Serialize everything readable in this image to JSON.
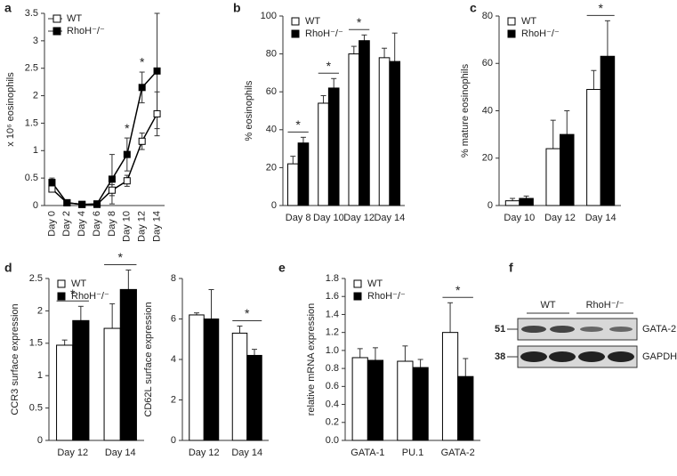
{
  "chart_data": [
    {
      "type": "line",
      "panel_label": "a",
      "ylabel": "x 10⁶ eosinophils",
      "categories": [
        "Day 0",
        "Day 2",
        "Day 4",
        "Day 6",
        "Day 8",
        "Day 10",
        "Day 12",
        "Day 14"
      ],
      "xtick_rotation": -90,
      "series": [
        {
          "name": "WT",
          "color": "#ffffff",
          "values": [
            0.3,
            0.05,
            0.02,
            0.02,
            0.28,
            0.45,
            1.17,
            1.67
          ],
          "errors": [
            0.05,
            0.02,
            0.01,
            0.01,
            0.1,
            0.1,
            0.15,
            0.4
          ]
        },
        {
          "name": "RhoH⁻/⁻",
          "color": "#000000",
          "values": [
            0.42,
            0.05,
            0.02,
            0.03,
            0.48,
            0.93,
            2.15,
            2.45
          ],
          "errors": [
            0.08,
            0.02,
            0.01,
            0.02,
            0.45,
            0.3,
            0.28,
            1.05
          ]
        }
      ],
      "ylim": [
        0,
        3.5
      ],
      "yticks": [
        0,
        0.5,
        1,
        1.5,
        2,
        2.5,
        3,
        3.5
      ],
      "legend": "upper left",
      "annotations": [
        {
          "text": "*",
          "category": "Day 10"
        },
        {
          "text": "*",
          "category": "Day 12"
        }
      ]
    },
    {
      "type": "bar",
      "panel_label": "b",
      "ylabel": "% eosinophils",
      "categories": [
        "Day 8",
        "Day 10",
        "Day 12",
        "Day 14"
      ],
      "series": [
        {
          "name": "WT",
          "color": "#ffffff",
          "values": [
            22,
            54,
            80,
            78
          ],
          "errors": [
            4,
            4,
            4,
            5
          ]
        },
        {
          "name": "RhoH⁻/⁻",
          "color": "#000000",
          "values": [
            33,
            62,
            87,
            76
          ],
          "errors": [
            3,
            5,
            3,
            15
          ]
        }
      ],
      "ylim": [
        0,
        100
      ],
      "yticks": [
        0,
        20,
        40,
        60,
        80,
        100
      ],
      "legend": "upper left",
      "annotations": [
        {
          "text": "*",
          "category": "Day 8"
        },
        {
          "text": "*",
          "category": "Day 10"
        },
        {
          "text": "*",
          "category": "Day 12"
        }
      ]
    },
    {
      "type": "bar",
      "panel_label": "c",
      "ylabel": "% mature eosinophils",
      "categories": [
        "Day 10",
        "Day 12",
        "Day 14"
      ],
      "series": [
        {
          "name": "WT",
          "color": "#ffffff",
          "values": [
            2,
            24,
            49
          ],
          "errors": [
            1,
            12,
            8
          ]
        },
        {
          "name": "RhoH⁻/⁻",
          "color": "#000000",
          "values": [
            3,
            30,
            63
          ],
          "errors": [
            1,
            10,
            15
          ]
        }
      ],
      "ylim": [
        0,
        80
      ],
      "yticks": [
        0,
        20,
        40,
        60,
        80
      ],
      "legend": "upper left",
      "annotations": [
        {
          "text": "*",
          "category": "Day 14"
        }
      ]
    },
    {
      "type": "bar",
      "panel_label": "d",
      "ylabel": "CCR3 surface expression",
      "categories": [
        "Day 12",
        "Day 14"
      ],
      "series": [
        {
          "name": "WT",
          "color": "#ffffff",
          "values": [
            1.47,
            1.73
          ],
          "errors": [
            0.08,
            0.38
          ]
        },
        {
          "name": "RhoH⁻/⁻",
          "color": "#000000",
          "values": [
            1.85,
            2.33
          ],
          "errors": [
            0.22,
            0.3
          ]
        }
      ],
      "ylim": [
        0,
        2.5
      ],
      "yticks": [
        0,
        0.5,
        1,
        1.5,
        2,
        2.5
      ],
      "legend": "upper left",
      "annotations": [
        {
          "text": "*",
          "category": "Day 12"
        },
        {
          "text": "*",
          "category": "Day 14"
        }
      ]
    },
    {
      "type": "bar",
      "ylabel": "CD62L surface expression",
      "categories": [
        "Day 12",
        "Day 14"
      ],
      "series": [
        {
          "color": "#ffffff",
          "values": [
            6.2,
            5.3
          ],
          "errors": [
            0.1,
            0.35
          ]
        },
        {
          "color": "#000000",
          "values": [
            6.0,
            4.2
          ],
          "errors": [
            1.45,
            0.3
          ]
        }
      ],
      "ylim": [
        0,
        8
      ],
      "yticks": [
        0,
        2,
        4,
        6,
        8
      ],
      "annotations": [
        {
          "text": "*",
          "category": "Day 14"
        }
      ]
    },
    {
      "type": "bar",
      "panel_label": "e",
      "ylabel": "relative mRNA expression",
      "categories": [
        "GATA-1",
        "PU.1",
        "GATA-2"
      ],
      "series": [
        {
          "name": "WT",
          "color": "#ffffff",
          "values": [
            0.92,
            0.88,
            1.2
          ],
          "errors": [
            0.1,
            0.17,
            0.33
          ]
        },
        {
          "name": "RhoH⁻/⁻",
          "color": "#000000",
          "values": [
            0.89,
            0.81,
            0.71
          ],
          "errors": [
            0.14,
            0.09,
            0.2
          ]
        }
      ],
      "ylim": [
        0,
        1.8
      ],
      "yticks": [
        {
          "value": 0,
          "label": "0.0"
        },
        0.2,
        0.4,
        0.6,
        0.8,
        {
          "value": 1,
          "label": "1.0"
        },
        1.2,
        1.4,
        1.6,
        1.8
      ],
      "legend": "upper left",
      "annotations": [
        {
          "text": "*",
          "category": "GATA-2"
        }
      ]
    }
  ],
  "blot": {
    "panel_label": "f",
    "groups": [
      "WT",
      "RhoH⁻/⁻"
    ],
    "markers": [
      "51",
      "38"
    ],
    "rows": [
      "GATA-2",
      "GAPDH"
    ]
  }
}
